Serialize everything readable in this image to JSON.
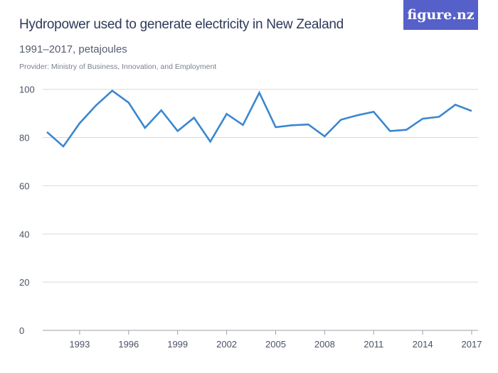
{
  "header": {
    "title": "Hydropower used to generate electricity in New Zealand",
    "subtitle": "1991–2017, petajoules",
    "provider": "Provider: Ministry of Business, Innovation, and Employment",
    "logo": "figure.nz",
    "logo_color": "#5560c8"
  },
  "chart_data": {
    "type": "line",
    "title": "Hydropower used to generate electricity in New Zealand",
    "subtitle": "1991–2017, petajoules",
    "x": [
      1991,
      1992,
      1993,
      1994,
      1995,
      1996,
      1997,
      1998,
      1999,
      2000,
      2001,
      2002,
      2003,
      2004,
      2005,
      2006,
      2007,
      2008,
      2009,
      2010,
      2011,
      2012,
      2013,
      2014,
      2015,
      2016,
      2017
    ],
    "values": [
      82.3,
      76.3,
      85.9,
      93.3,
      99.4,
      94.5,
      84.0,
      91.3,
      82.7,
      88.2,
      78.3,
      89.8,
      85.2,
      98.6,
      84.3,
      85.1,
      85.4,
      80.5,
      87.4,
      89.2,
      90.7,
      82.7,
      83.2,
      87.8,
      88.6,
      93.6,
      91.0
    ],
    "xticks": [
      "1993",
      "1996",
      "1999",
      "2002",
      "2005",
      "2008",
      "2011",
      "2014",
      "2017"
    ],
    "yticks": [
      "0",
      "20",
      "40",
      "60",
      "80",
      "100"
    ],
    "ylim": [
      0,
      100
    ],
    "xlim": [
      1991,
      2017
    ],
    "grid": true,
    "line_color": "#3a87d0"
  }
}
